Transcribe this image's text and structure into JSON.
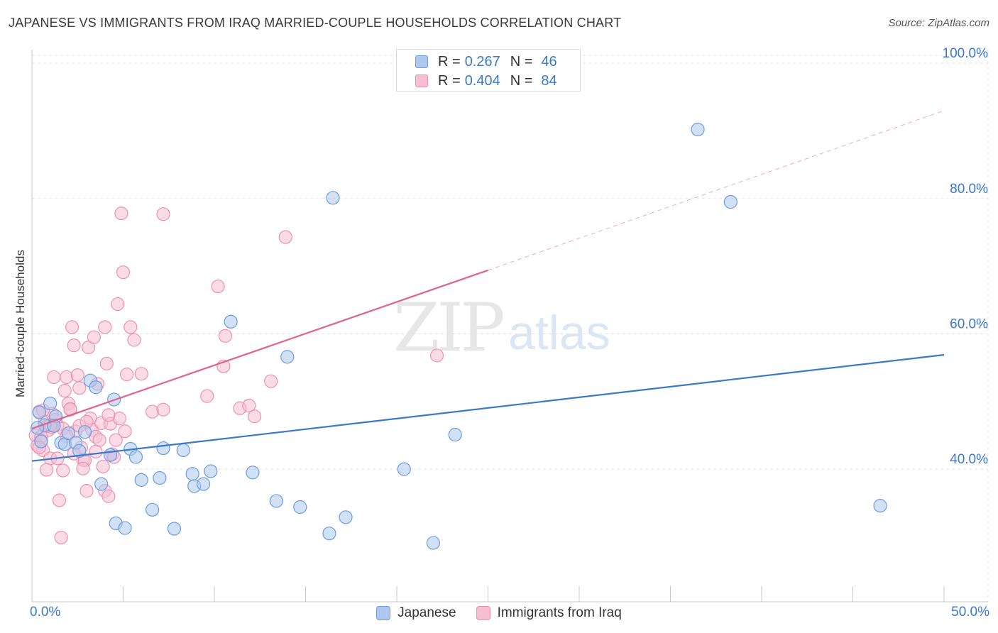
{
  "title": "JAPANESE VS IMMIGRANTS FROM IRAQ MARRIED-COUPLE HOUSEHOLDS CORRELATION CHART",
  "source": "Source: ZipAtlas.com",
  "watermark": {
    "zip": "ZIP",
    "atlas": "atlas"
  },
  "stats": {
    "japanese": {
      "r_label": "R =",
      "r": "0.267",
      "n_label": "N =",
      "n": "46"
    },
    "iraq": {
      "r_label": "R =",
      "r": "0.404",
      "n_label": "N =",
      "n": "84"
    }
  },
  "legend": {
    "japanese": "Japanese",
    "iraq": "Immigrants from Iraq"
  },
  "x_axis": {
    "min_label": "0.0%",
    "max_label": "50.0%"
  },
  "colors": {
    "japanese_fill": "#aec8f0",
    "japanese_stroke": "#6b9be0",
    "japanese_line": "#3a78c9",
    "iraq_fill": "#f7bfd1",
    "iraq_stroke": "#ec92b1",
    "iraq_line": "#e0628e",
    "tick_label": "#3a78c9",
    "grid": "#e3e3e3"
  },
  "chart_data": {
    "type": "scatter",
    "title": "JAPANESE VS IMMIGRANTS FROM IRAQ MARRIED-COUPLE HOUSEHOLDS CORRELATION CHART",
    "xlabel": "",
    "ylabel": "Married-couple Households",
    "xlim": [
      0,
      50
    ],
    "ylim": [
      20.4,
      102
    ],
    "y_ticks": [
      40,
      60,
      80,
      100
    ],
    "y_tick_labels": [
      "40.0%",
      "60.0%",
      "80.0%",
      "100.0%"
    ],
    "x_ticks": [
      0,
      5,
      10,
      15,
      20,
      25,
      30,
      35,
      40,
      45,
      50
    ],
    "grid": true,
    "series": [
      {
        "name": "Japanese",
        "r": 0.267,
        "n": 46,
        "trend": {
          "x": [
            0,
            50
          ],
          "y": [
            41.2,
            56.9
          ],
          "dashed_to": null
        },
        "points": [
          [
            0.4,
            48.4
          ],
          [
            0.5,
            44.1
          ],
          [
            0.7,
            46.5
          ],
          [
            1.0,
            49.7
          ],
          [
            1.3,
            47.8
          ],
          [
            1.6,
            43.9
          ],
          [
            1.8,
            43.7
          ],
          [
            2.0,
            45.3
          ],
          [
            2.4,
            43.9
          ],
          [
            2.6,
            42.7
          ],
          [
            3.2,
            53.1
          ],
          [
            3.5,
            52.1
          ],
          [
            3.8,
            37.8
          ],
          [
            4.3,
            42.1
          ],
          [
            4.5,
            50.3
          ],
          [
            4.6,
            32.0
          ],
          [
            5.1,
            31.3
          ],
          [
            5.4,
            43.0
          ],
          [
            5.7,
            41.8
          ],
          [
            6.0,
            38.4
          ],
          [
            6.6,
            34.0
          ],
          [
            7.0,
            38.7
          ],
          [
            7.2,
            43.1
          ],
          [
            7.8,
            31.2
          ],
          [
            8.3,
            42.8
          ],
          [
            8.8,
            39.3
          ],
          [
            8.9,
            37.5
          ],
          [
            9.4,
            37.8
          ],
          [
            9.8,
            39.7
          ],
          [
            10.9,
            61.8
          ],
          [
            12.1,
            39.5
          ],
          [
            13.4,
            35.3
          ],
          [
            14.0,
            56.6
          ],
          [
            14.7,
            34.4
          ],
          [
            16.3,
            30.5
          ],
          [
            16.5,
            80.1
          ],
          [
            17.2,
            32.9
          ],
          [
            20.4,
            40.0
          ],
          [
            22.0,
            29.1
          ],
          [
            23.2,
            45.1
          ],
          [
            36.5,
            90.2
          ],
          [
            38.3,
            79.5
          ],
          [
            46.5,
            34.6
          ],
          [
            0.3,
            46.1
          ],
          [
            1.2,
            46.4
          ],
          [
            2.9,
            45.5
          ]
        ]
      },
      {
        "name": "Immigrants from Iraq",
        "r": 0.404,
        "n": 84,
        "trend": {
          "x": [
            0,
            25
          ],
          "y": [
            46.0,
            69.4
          ],
          "dashed_to": {
            "x": 50,
            "y": 93.0
          }
        },
        "points": [
          [
            0.2,
            45.0
          ],
          [
            0.3,
            43.5
          ],
          [
            0.4,
            48.5
          ],
          [
            0.5,
            44.2
          ],
          [
            0.6,
            42.8
          ],
          [
            0.7,
            47.0
          ],
          [
            0.8,
            46.3
          ],
          [
            0.9,
            45.8
          ],
          [
            1.0,
            41.6
          ],
          [
            1.1,
            48.2
          ],
          [
            1.2,
            53.6
          ],
          [
            1.3,
            47.3
          ],
          [
            1.4,
            46.5
          ],
          [
            1.5,
            35.4
          ],
          [
            1.6,
            29.9
          ],
          [
            1.7,
            39.8
          ],
          [
            1.8,
            51.6
          ],
          [
            1.9,
            53.6
          ],
          [
            2.0,
            49.7
          ],
          [
            2.1,
            48.8
          ],
          [
            2.2,
            61.0
          ],
          [
            2.3,
            58.3
          ],
          [
            2.4,
            45.6
          ],
          [
            2.5,
            53.9
          ],
          [
            2.6,
            52.0
          ],
          [
            2.7,
            43.2
          ],
          [
            2.8,
            41.4
          ],
          [
            2.9,
            41.3
          ],
          [
            3.0,
            36.8
          ],
          [
            3.1,
            58.0
          ],
          [
            3.2,
            47.5
          ],
          [
            3.3,
            45.8
          ],
          [
            3.4,
            59.5
          ],
          [
            3.5,
            44.8
          ],
          [
            3.6,
            52.6
          ],
          [
            3.7,
            44.3
          ],
          [
            3.8,
            46.8
          ],
          [
            3.9,
            40.4
          ],
          [
            4.0,
            36.8
          ],
          [
            4.0,
            61.0
          ],
          [
            4.1,
            55.6
          ],
          [
            4.2,
            36.0
          ],
          [
            4.3,
            46.7
          ],
          [
            4.4,
            42.2
          ],
          [
            4.5,
            41.8
          ],
          [
            4.6,
            44.3
          ],
          [
            4.7,
            64.4
          ],
          [
            4.8,
            47.5
          ],
          [
            4.9,
            77.8
          ],
          [
            5.0,
            69.1
          ],
          [
            5.1,
            45.6
          ],
          [
            5.2,
            54.0
          ],
          [
            5.4,
            61.0
          ],
          [
            5.6,
            59.1
          ],
          [
            6.0,
            54.1
          ],
          [
            6.6,
            48.5
          ],
          [
            7.2,
            48.8
          ],
          [
            7.2,
            77.7
          ],
          [
            9.6,
            50.8
          ],
          [
            10.2,
            67.0
          ],
          [
            10.5,
            55.2
          ],
          [
            10.6,
            59.7
          ],
          [
            11.4,
            49.0
          ],
          [
            11.9,
            49.4
          ],
          [
            12.2,
            47.8
          ],
          [
            13.1,
            53.0
          ],
          [
            13.9,
            74.3
          ],
          [
            22.2,
            56.8
          ],
          [
            0.5,
            44.8
          ],
          [
            1.1,
            46.2
          ],
          [
            1.7,
            46.0
          ],
          [
            2.3,
            42.3
          ],
          [
            0.8,
            39.9
          ],
          [
            1.4,
            41.6
          ],
          [
            2.6,
            46.4
          ],
          [
            3.0,
            47.0
          ],
          [
            0.6,
            48.7
          ],
          [
            1.9,
            44.9
          ],
          [
            3.5,
            42.6
          ],
          [
            4.2,
            48.0
          ],
          [
            0.4,
            43.2
          ],
          [
            1.0,
            46.5
          ],
          [
            2.1,
            48.9
          ],
          [
            2.8,
            40.1
          ]
        ]
      }
    ]
  }
}
